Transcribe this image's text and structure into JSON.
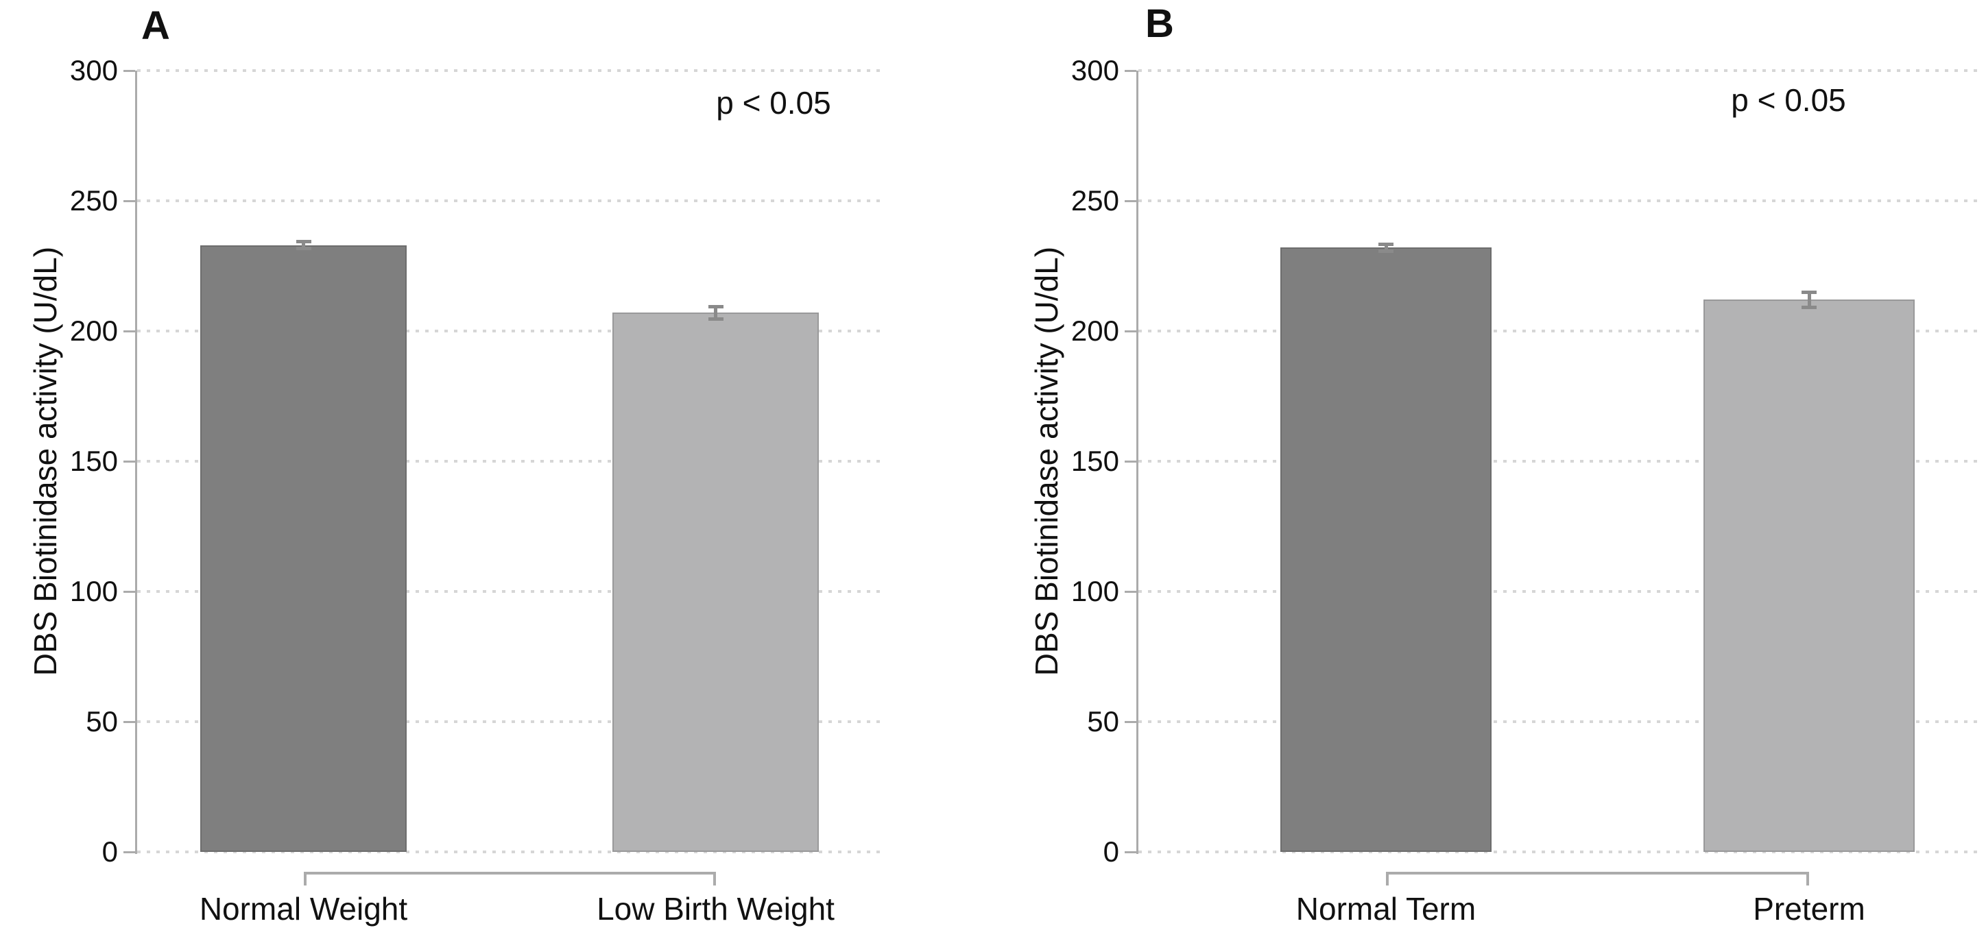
{
  "figure": {
    "background": "#ffffff",
    "text_color": "#111111",
    "axis_color": "#ababab",
    "grid_dot_color": "#d6d6d6",
    "error_bar_color": "#8a8a8a",
    "bracket_color": "#ababab"
  },
  "chart_data": [
    {
      "type": "bar",
      "panel_label": "A",
      "title": "",
      "xlabel": "",
      "ylabel": "DBS Biotinidase activity (U/dL)",
      "categories": [
        "Normal Weight",
        "Low Birth Weight"
      ],
      "values": [
        233,
        207
      ],
      "errors": [
        1.5,
        2.6
      ],
      "bar_colors": [
        "#7f7f7f",
        "#b3b3b4"
      ],
      "ylim": [
        0,
        300
      ],
      "yticks": [
        "0",
        "50",
        "100",
        "150",
        "200",
        "250",
        "300"
      ],
      "ytick_values": [
        0,
        50,
        100,
        150,
        200,
        250,
        300
      ],
      "grid": "horizontal-dotted",
      "legend": "none",
      "annotation": "p < 0.05",
      "comparison_bracket": "between both bars"
    },
    {
      "type": "bar",
      "panel_label": "B",
      "title": "",
      "xlabel": "",
      "ylabel": "DBS Biotinidase activity (U/dL)",
      "categories": [
        "Normal Term",
        "Preterm"
      ],
      "values": [
        232,
        212
      ],
      "errors": [
        1.5,
        3
      ],
      "bar_colors": [
        "#7f7f7f",
        "#b3b3b4"
      ],
      "ylim": [
        0,
        300
      ],
      "yticks": [
        "0",
        "50",
        "100",
        "150",
        "200",
        "250",
        "300"
      ],
      "ytick_values": [
        0,
        50,
        100,
        150,
        200,
        250,
        300
      ],
      "grid": "horizontal-dotted",
      "legend": "none",
      "annotation": "p < 0.05",
      "comparison_bracket": "between both bars"
    }
  ]
}
